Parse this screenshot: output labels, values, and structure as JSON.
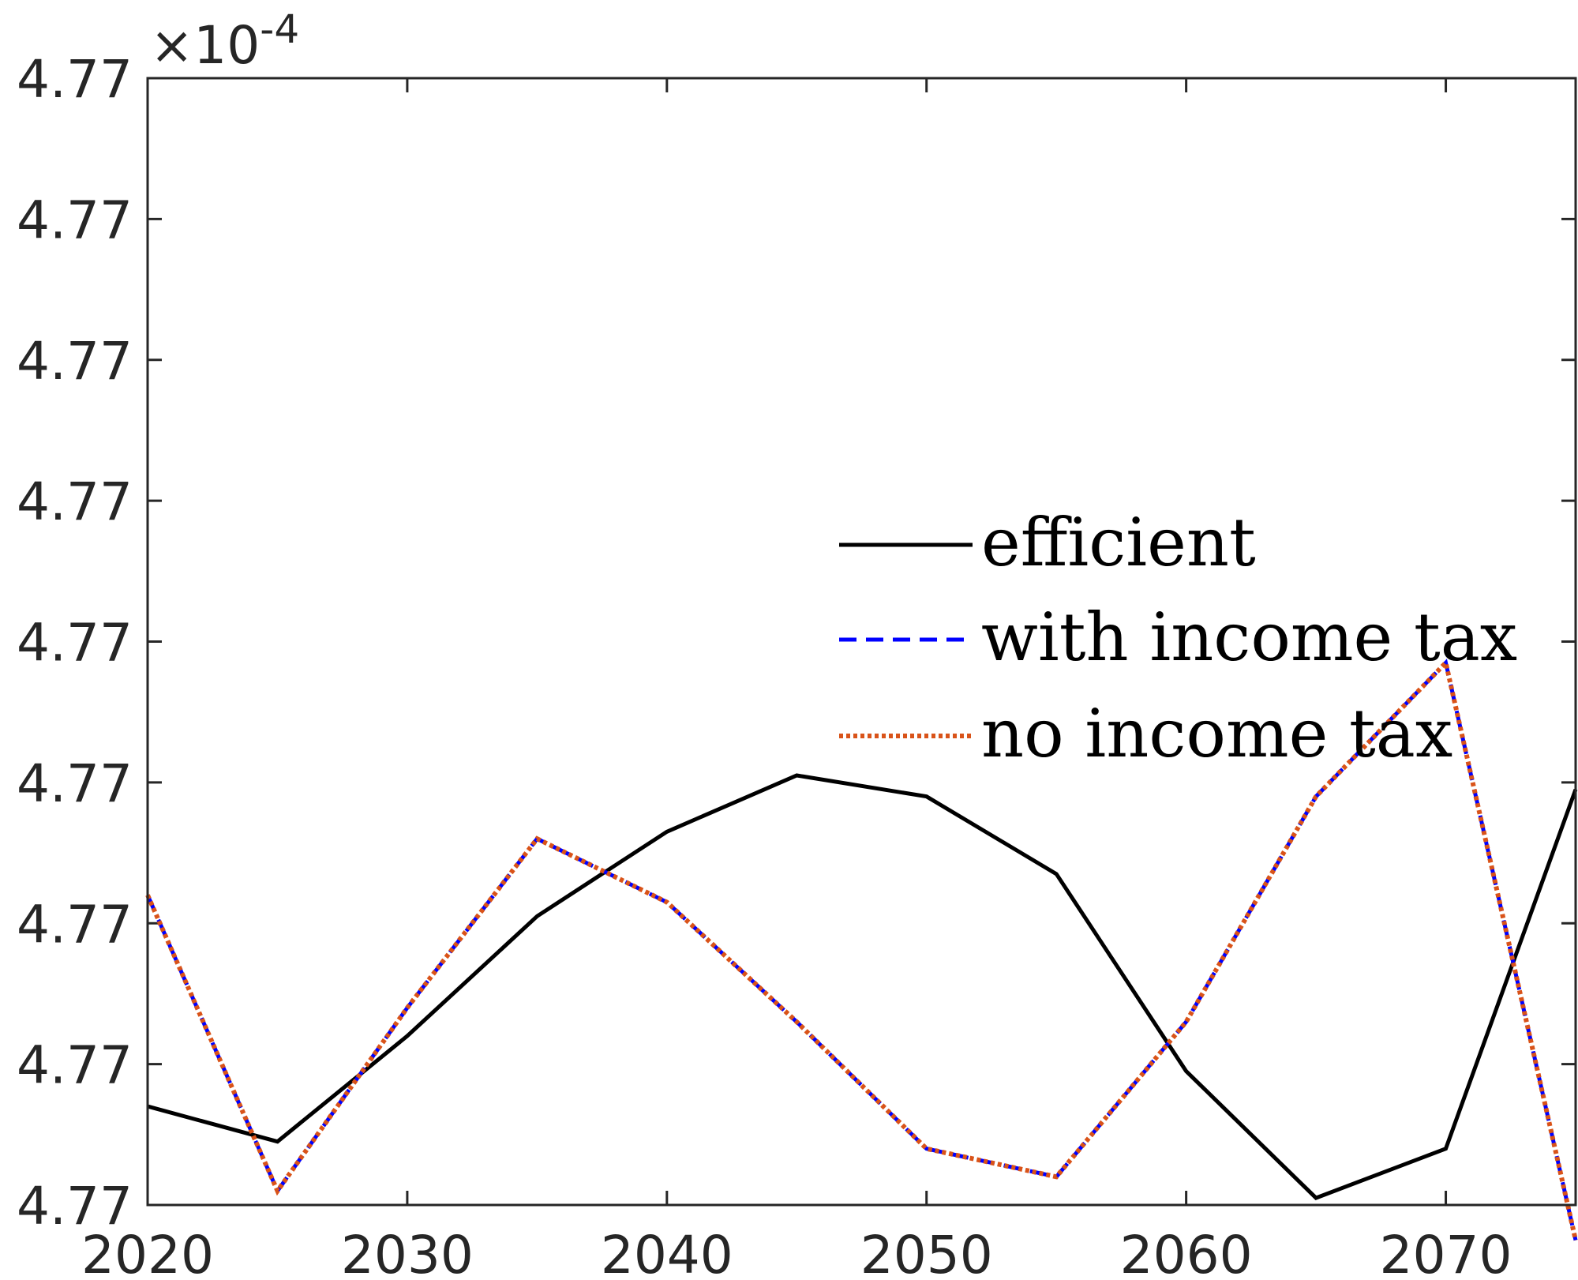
{
  "chart_data": {
    "type": "line",
    "title": "",
    "xlabel": "",
    "ylabel": "",
    "x": [
      2020,
      2025,
      2030,
      2035,
      2040,
      2045,
      2050,
      2055,
      2060,
      2065,
      2070,
      2075
    ],
    "xlim": [
      2020,
      2075
    ],
    "ylim": [
      4.76998,
      4.77014
    ],
    "x_ticks": [
      2020,
      2030,
      2040,
      2050,
      2060,
      2070
    ],
    "y_ticks": [
      4.76998,
      4.77,
      4.77002,
      4.77004,
      4.77006,
      4.77008,
      4.7701,
      4.77012,
      4.77014
    ],
    "x_tick_labels": [
      "2020",
      "2030",
      "2040",
      "2050",
      "2060",
      "2070"
    ],
    "y_tick_labels": [
      "4.77",
      "4.77",
      "4.77",
      "4.77",
      "4.77",
      "4.77",
      "4.77",
      "4.77",
      "4.77"
    ],
    "y_exponent_label": "×10",
    "y_exponent_power": "-4",
    "grid": false,
    "legend_position": "center-right",
    "series": [
      {
        "name": "efficient",
        "color": "#000000",
        "style": "solid",
        "values": [
          4.769994,
          4.769989,
          4.770004,
          4.770021,
          4.770033,
          4.770041,
          4.770038,
          4.770027,
          4.769999,
          4.769981,
          4.769988,
          4.770039
        ]
      },
      {
        "name": "with income tax",
        "color": "#0000ff",
        "style": "dashed",
        "values": [
          4.770024,
          4.769982,
          4.770008,
          4.770032,
          4.770023,
          4.770006,
          4.769988,
          4.769984,
          4.770006,
          4.770038,
          4.770057,
          4.769975
        ]
      },
      {
        "name": "no income tax",
        "color": "#d95319",
        "style": "dotted",
        "values": [
          4.770024,
          4.769982,
          4.770008,
          4.770032,
          4.770023,
          4.770006,
          4.769988,
          4.769984,
          4.770006,
          4.770038,
          4.770057,
          4.769975
        ]
      }
    ]
  }
}
